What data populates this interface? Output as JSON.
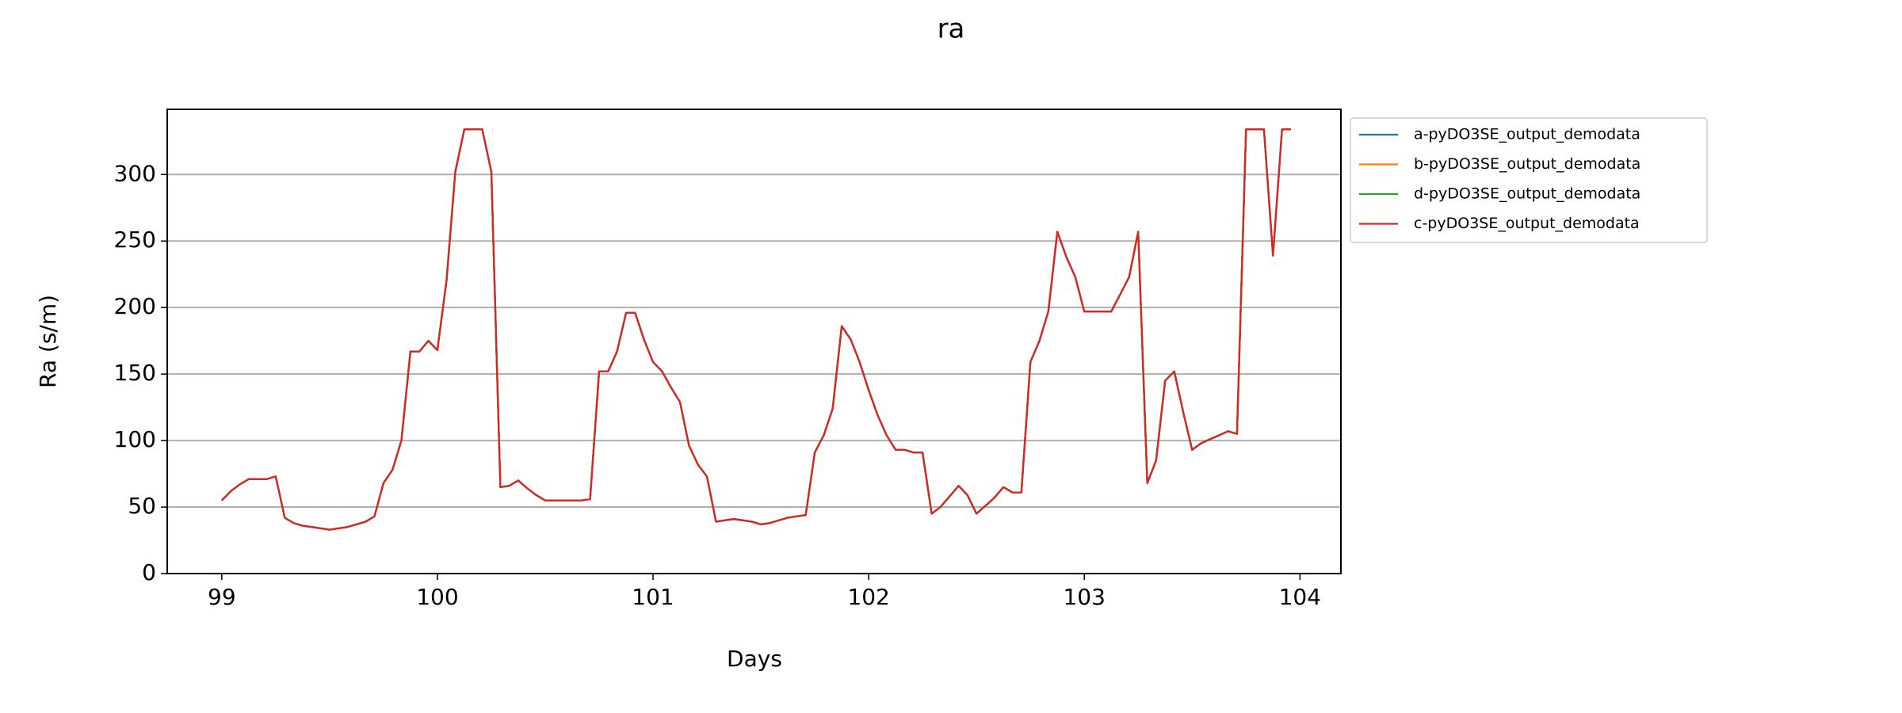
{
  "chart_data": {
    "type": "line",
    "title": "ra",
    "xlabel": "Days",
    "ylabel": "Ra (s/m)",
    "xlim": [
      98.747,
      104.19
    ],
    "xticks": [
      99,
      100,
      101,
      102,
      103,
      104
    ],
    "ylim": [
      0,
      349
    ],
    "yticks": [
      0,
      50,
      100,
      150,
      200,
      250,
      300
    ],
    "grid": true,
    "legend": "outside-upper-right",
    "x": [
      99,
      99.042,
      99.083,
      99.125,
      99.167,
      99.208,
      99.25,
      99.292,
      99.333,
      99.375,
      99.417,
      99.458,
      99.5,
      99.542,
      99.583,
      99.625,
      99.667,
      99.708,
      99.75,
      99.792,
      99.833,
      99.875,
      99.917,
      99.958,
      100,
      100.042,
      100.083,
      100.125,
      100.167,
      100.208,
      100.25,
      100.292,
      100.333,
      100.375,
      100.417,
      100.458,
      100.5,
      100.542,
      100.583,
      100.625,
      100.667,
      100.708,
      100.75,
      100.792,
      100.833,
      100.875,
      100.917,
      100.958,
      101,
      101.042,
      101.083,
      101.125,
      101.167,
      101.208,
      101.25,
      101.292,
      101.333,
      101.375,
      101.417,
      101.458,
      101.5,
      101.542,
      101.583,
      101.625,
      101.667,
      101.708,
      101.75,
      101.792,
      101.833,
      101.875,
      101.917,
      101.958,
      102,
      102.042,
      102.083,
      102.125,
      102.167,
      102.208,
      102.25,
      102.292,
      102.333,
      102.375,
      102.417,
      102.458,
      102.5,
      102.542,
      102.583,
      102.625,
      102.667,
      102.708,
      102.75,
      102.792,
      102.833,
      102.875,
      102.917,
      102.958,
      103,
      103.042,
      103.083,
      103.125,
      103.167,
      103.208,
      103.25,
      103.292,
      103.333,
      103.375,
      103.417,
      103.458,
      103.5,
      103.542,
      103.583,
      103.625,
      103.667,
      103.708,
      103.75,
      103.792,
      103.833,
      103.875,
      103.917,
      103.958
    ],
    "series": [
      {
        "name": "a-pyDO3SE_output_demodata",
        "color": "#1f77b4",
        "values": [
          55,
          62,
          67,
          71,
          71,
          71,
          73,
          42,
          38,
          36,
          35,
          34,
          33,
          34,
          35,
          37,
          39,
          43,
          68,
          78,
          100,
          167,
          167,
          175,
          168,
          220,
          302,
          334,
          334,
          334,
          302,
          65,
          66,
          70,
          64,
          59,
          55,
          55,
          55,
          55,
          55,
          56,
          152,
          152,
          167,
          196,
          196,
          176,
          159,
          152,
          140,
          129,
          96,
          82,
          73,
          39,
          40,
          41,
          40,
          39,
          37,
          38,
          40,
          42,
          43,
          44,
          91,
          104,
          124,
          186,
          176,
          159,
          138,
          119,
          104,
          93,
          93,
          91,
          91,
          45,
          50,
          58,
          66,
          59,
          45,
          51,
          57,
          65,
          61,
          61,
          159,
          175,
          197,
          257,
          238,
          223,
          197,
          197,
          197,
          197,
          210,
          223,
          257,
          68,
          85,
          145,
          152,
          122,
          93,
          98,
          101,
          104,
          107,
          105,
          334,
          334,
          334,
          239,
          334,
          334
        ]
      },
      {
        "name": "b-pyDO3SE_output_demodata",
        "color": "#ff7f0e",
        "values": [
          55,
          62,
          67,
          71,
          71,
          71,
          73,
          42,
          38,
          36,
          35,
          34,
          33,
          34,
          35,
          37,
          39,
          43,
          68,
          78,
          100,
          167,
          167,
          175,
          168,
          220,
          302,
          334,
          334,
          334,
          302,
          65,
          66,
          70,
          64,
          59,
          55,
          55,
          55,
          55,
          55,
          56,
          152,
          152,
          167,
          196,
          196,
          176,
          159,
          152,
          140,
          129,
          96,
          82,
          73,
          39,
          40,
          41,
          40,
          39,
          37,
          38,
          40,
          42,
          43,
          44,
          91,
          104,
          124,
          186,
          176,
          159,
          138,
          119,
          104,
          93,
          93,
          91,
          91,
          45,
          50,
          58,
          66,
          59,
          45,
          51,
          57,
          65,
          61,
          61,
          159,
          175,
          197,
          257,
          238,
          223,
          197,
          197,
          197,
          197,
          210,
          223,
          257,
          68,
          85,
          145,
          152,
          122,
          93,
          98,
          101,
          104,
          107,
          105,
          334,
          334,
          334,
          239,
          334,
          334
        ]
      },
      {
        "name": "d-pyDO3SE_output_demodata",
        "color": "#2ca02c",
        "values": [
          55,
          62,
          67,
          71,
          71,
          71,
          73,
          42,
          38,
          36,
          35,
          34,
          33,
          34,
          35,
          37,
          39,
          43,
          68,
          78,
          100,
          167,
          167,
          175,
          168,
          220,
          302,
          334,
          334,
          334,
          302,
          65,
          66,
          70,
          64,
          59,
          55,
          55,
          55,
          55,
          55,
          56,
          152,
          152,
          167,
          196,
          196,
          176,
          159,
          152,
          140,
          129,
          96,
          82,
          73,
          39,
          40,
          41,
          40,
          39,
          37,
          38,
          40,
          42,
          43,
          44,
          91,
          104,
          124,
          186,
          176,
          159,
          138,
          119,
          104,
          93,
          93,
          91,
          91,
          45,
          50,
          58,
          66,
          59,
          45,
          51,
          57,
          65,
          61,
          61,
          159,
          175,
          197,
          257,
          238,
          223,
          197,
          197,
          197,
          197,
          210,
          223,
          257,
          68,
          85,
          145,
          152,
          122,
          93,
          98,
          101,
          104,
          107,
          105,
          334,
          334,
          334,
          239,
          334,
          334
        ]
      },
      {
        "name": "c-pyDO3SE_output_demodata",
        "color": "#d62728",
        "values": [
          55,
          62,
          67,
          71,
          71,
          71,
          73,
          42,
          38,
          36,
          35,
          34,
          33,
          34,
          35,
          37,
          39,
          43,
          68,
          78,
          100,
          167,
          167,
          175,
          168,
          220,
          302,
          334,
          334,
          334,
          302,
          65,
          66,
          70,
          64,
          59,
          55,
          55,
          55,
          55,
          55,
          56,
          152,
          152,
          167,
          196,
          196,
          176,
          159,
          152,
          140,
          129,
          96,
          82,
          73,
          39,
          40,
          41,
          40,
          39,
          37,
          38,
          40,
          42,
          43,
          44,
          91,
          104,
          124,
          186,
          176,
          159,
          138,
          119,
          104,
          93,
          93,
          91,
          91,
          45,
          50,
          58,
          66,
          59,
          45,
          51,
          57,
          65,
          61,
          61,
          159,
          175,
          197,
          257,
          238,
          223,
          197,
          197,
          197,
          197,
          210,
          223,
          257,
          68,
          85,
          145,
          152,
          122,
          93,
          98,
          101,
          104,
          107,
          105,
          334,
          334,
          334,
          239,
          334,
          334
        ]
      }
    ]
  }
}
